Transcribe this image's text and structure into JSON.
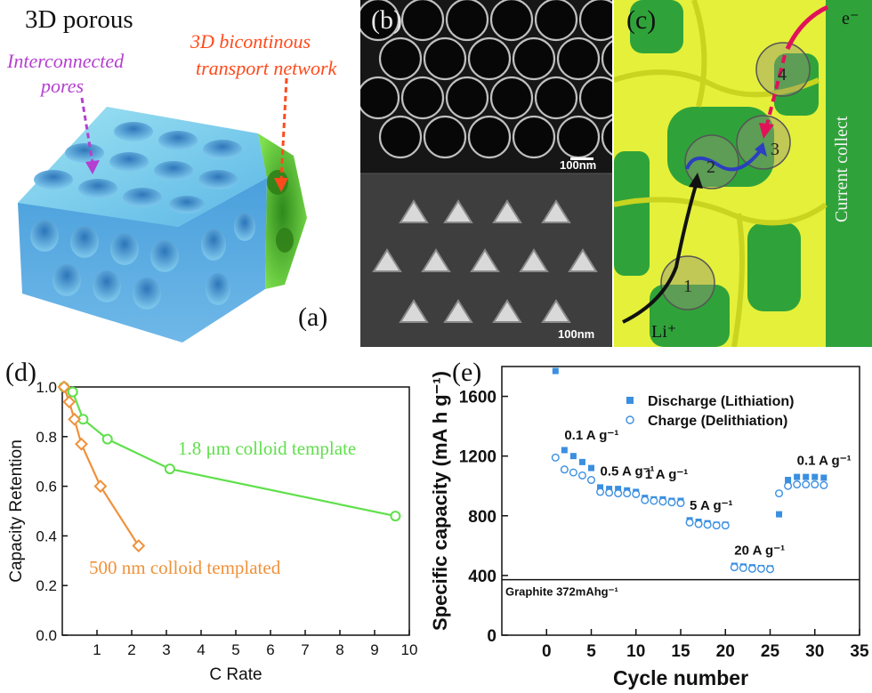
{
  "panel_a": {
    "label": "(a)",
    "title": "3D porous",
    "pores_label_line1": "Interconnected",
    "pores_label_line2": "pores",
    "network_label_line1": "3D bicontinous",
    "network_label_line2": "transport network",
    "colors": {
      "pores": "#b53fd0",
      "network": "#ff4a1c",
      "blue": "#4aa8e0",
      "green": "#4dc42a"
    }
  },
  "panel_b": {
    "label": "(b)",
    "scalebar_top": "100nm",
    "scalebar_bottom": "100nm"
  },
  "panel_c": {
    "label": "(c)",
    "electron_label": "e⁻",
    "li_label": "Li⁺",
    "collector_label": "Current collect",
    "steps": [
      "1",
      "2",
      "3",
      "4"
    ]
  },
  "chart_data": [
    {
      "panel": "(d)",
      "type": "line",
      "xlabel": "C Rate",
      "ylabel": "Capacity Retention",
      "xlim": [
        0,
        10
      ],
      "ylim": [
        0.0,
        1.0
      ],
      "xticks": [
        "1",
        "2",
        "3",
        "4",
        "5",
        "6",
        "7",
        "8",
        "9",
        "10"
      ],
      "yticks": [
        "0.0",
        "0.2",
        "0.4",
        "0.6",
        "0.8",
        "1.0"
      ],
      "series": [
        {
          "name": "1.8 μm colloid template",
          "color": "#5fe04a",
          "marker": "circle",
          "x": [
            0.05,
            0.3,
            0.6,
            1.3,
            3.1,
            9.6
          ],
          "y": [
            1.0,
            0.98,
            0.87,
            0.79,
            0.67,
            0.48
          ]
        },
        {
          "name": "500 nm colloid templated",
          "color": "#f0913a",
          "marker": "diamond",
          "x": [
            0.05,
            0.2,
            0.35,
            0.55,
            1.1,
            2.2
          ],
          "y": [
            1.0,
            0.94,
            0.87,
            0.77,
            0.6,
            0.36
          ]
        }
      ]
    },
    {
      "panel": "(e)",
      "type": "scatter",
      "xlabel": "Cycle number",
      "ylabel": "Specific capacity (mA h g⁻¹)",
      "xlim": [
        -5,
        35
      ],
      "ylim": [
        0,
        1800
      ],
      "xticks": [
        "0",
        "5",
        "10",
        "15",
        "20",
        "25",
        "30",
        "35"
      ],
      "yticks": [
        "0",
        "400",
        "800",
        "1200",
        "1600"
      ],
      "reference_line": {
        "label": "Graphite 372mAhg⁻¹",
        "y": 372
      },
      "annotations": [
        {
          "text": "0.1 A g⁻¹",
          "x": 2,
          "y": 1310
        },
        {
          "text": "0.5 A g⁻¹",
          "x": 6,
          "y": 1070
        },
        {
          "text": "1 A g⁻¹",
          "x": 11,
          "y": 1050
        },
        {
          "text": "5 A g⁻¹",
          "x": 16,
          "y": 840
        },
        {
          "text": "20 A g⁻¹",
          "x": 21,
          "y": 540
        },
        {
          "text": "0.1 A g⁻¹",
          "x": 28,
          "y": 1140
        }
      ],
      "series": [
        {
          "name": "Discharge (Lithiation)",
          "color": "#3a8fe0",
          "marker": "square",
          "x": [
            1,
            2,
            3,
            4,
            5,
            6,
            7,
            8,
            9,
            10,
            11,
            12,
            13,
            14,
            15,
            16,
            17,
            18,
            19,
            20,
            21,
            22,
            23,
            24,
            25,
            26,
            27,
            28,
            29,
            30,
            31
          ],
          "y": [
            1770,
            1240,
            1200,
            1160,
            1120,
            990,
            980,
            980,
            970,
            960,
            920,
            910,
            910,
            900,
            900,
            770,
            760,
            750,
            740,
            740,
            465,
            460,
            455,
            450,
            448,
            810,
            1040,
            1060,
            1060,
            1060,
            1055
          ]
        },
        {
          "name": "Charge (Delithiation)",
          "color": "#3a8fe0",
          "marker": "open-circle",
          "x": [
            1,
            2,
            3,
            4,
            5,
            6,
            7,
            8,
            9,
            10,
            11,
            12,
            13,
            14,
            15,
            16,
            17,
            18,
            19,
            20,
            21,
            22,
            23,
            24,
            25,
            26,
            27,
            28,
            29,
            30,
            31
          ],
          "y": [
            1190,
            1110,
            1090,
            1070,
            1040,
            960,
            955,
            950,
            950,
            945,
            905,
            900,
            895,
            890,
            885,
            755,
            745,
            740,
            735,
            735,
            455,
            450,
            445,
            445,
            442,
            950,
            1000,
            1010,
            1010,
            1010,
            1005
          ]
        }
      ]
    }
  ]
}
